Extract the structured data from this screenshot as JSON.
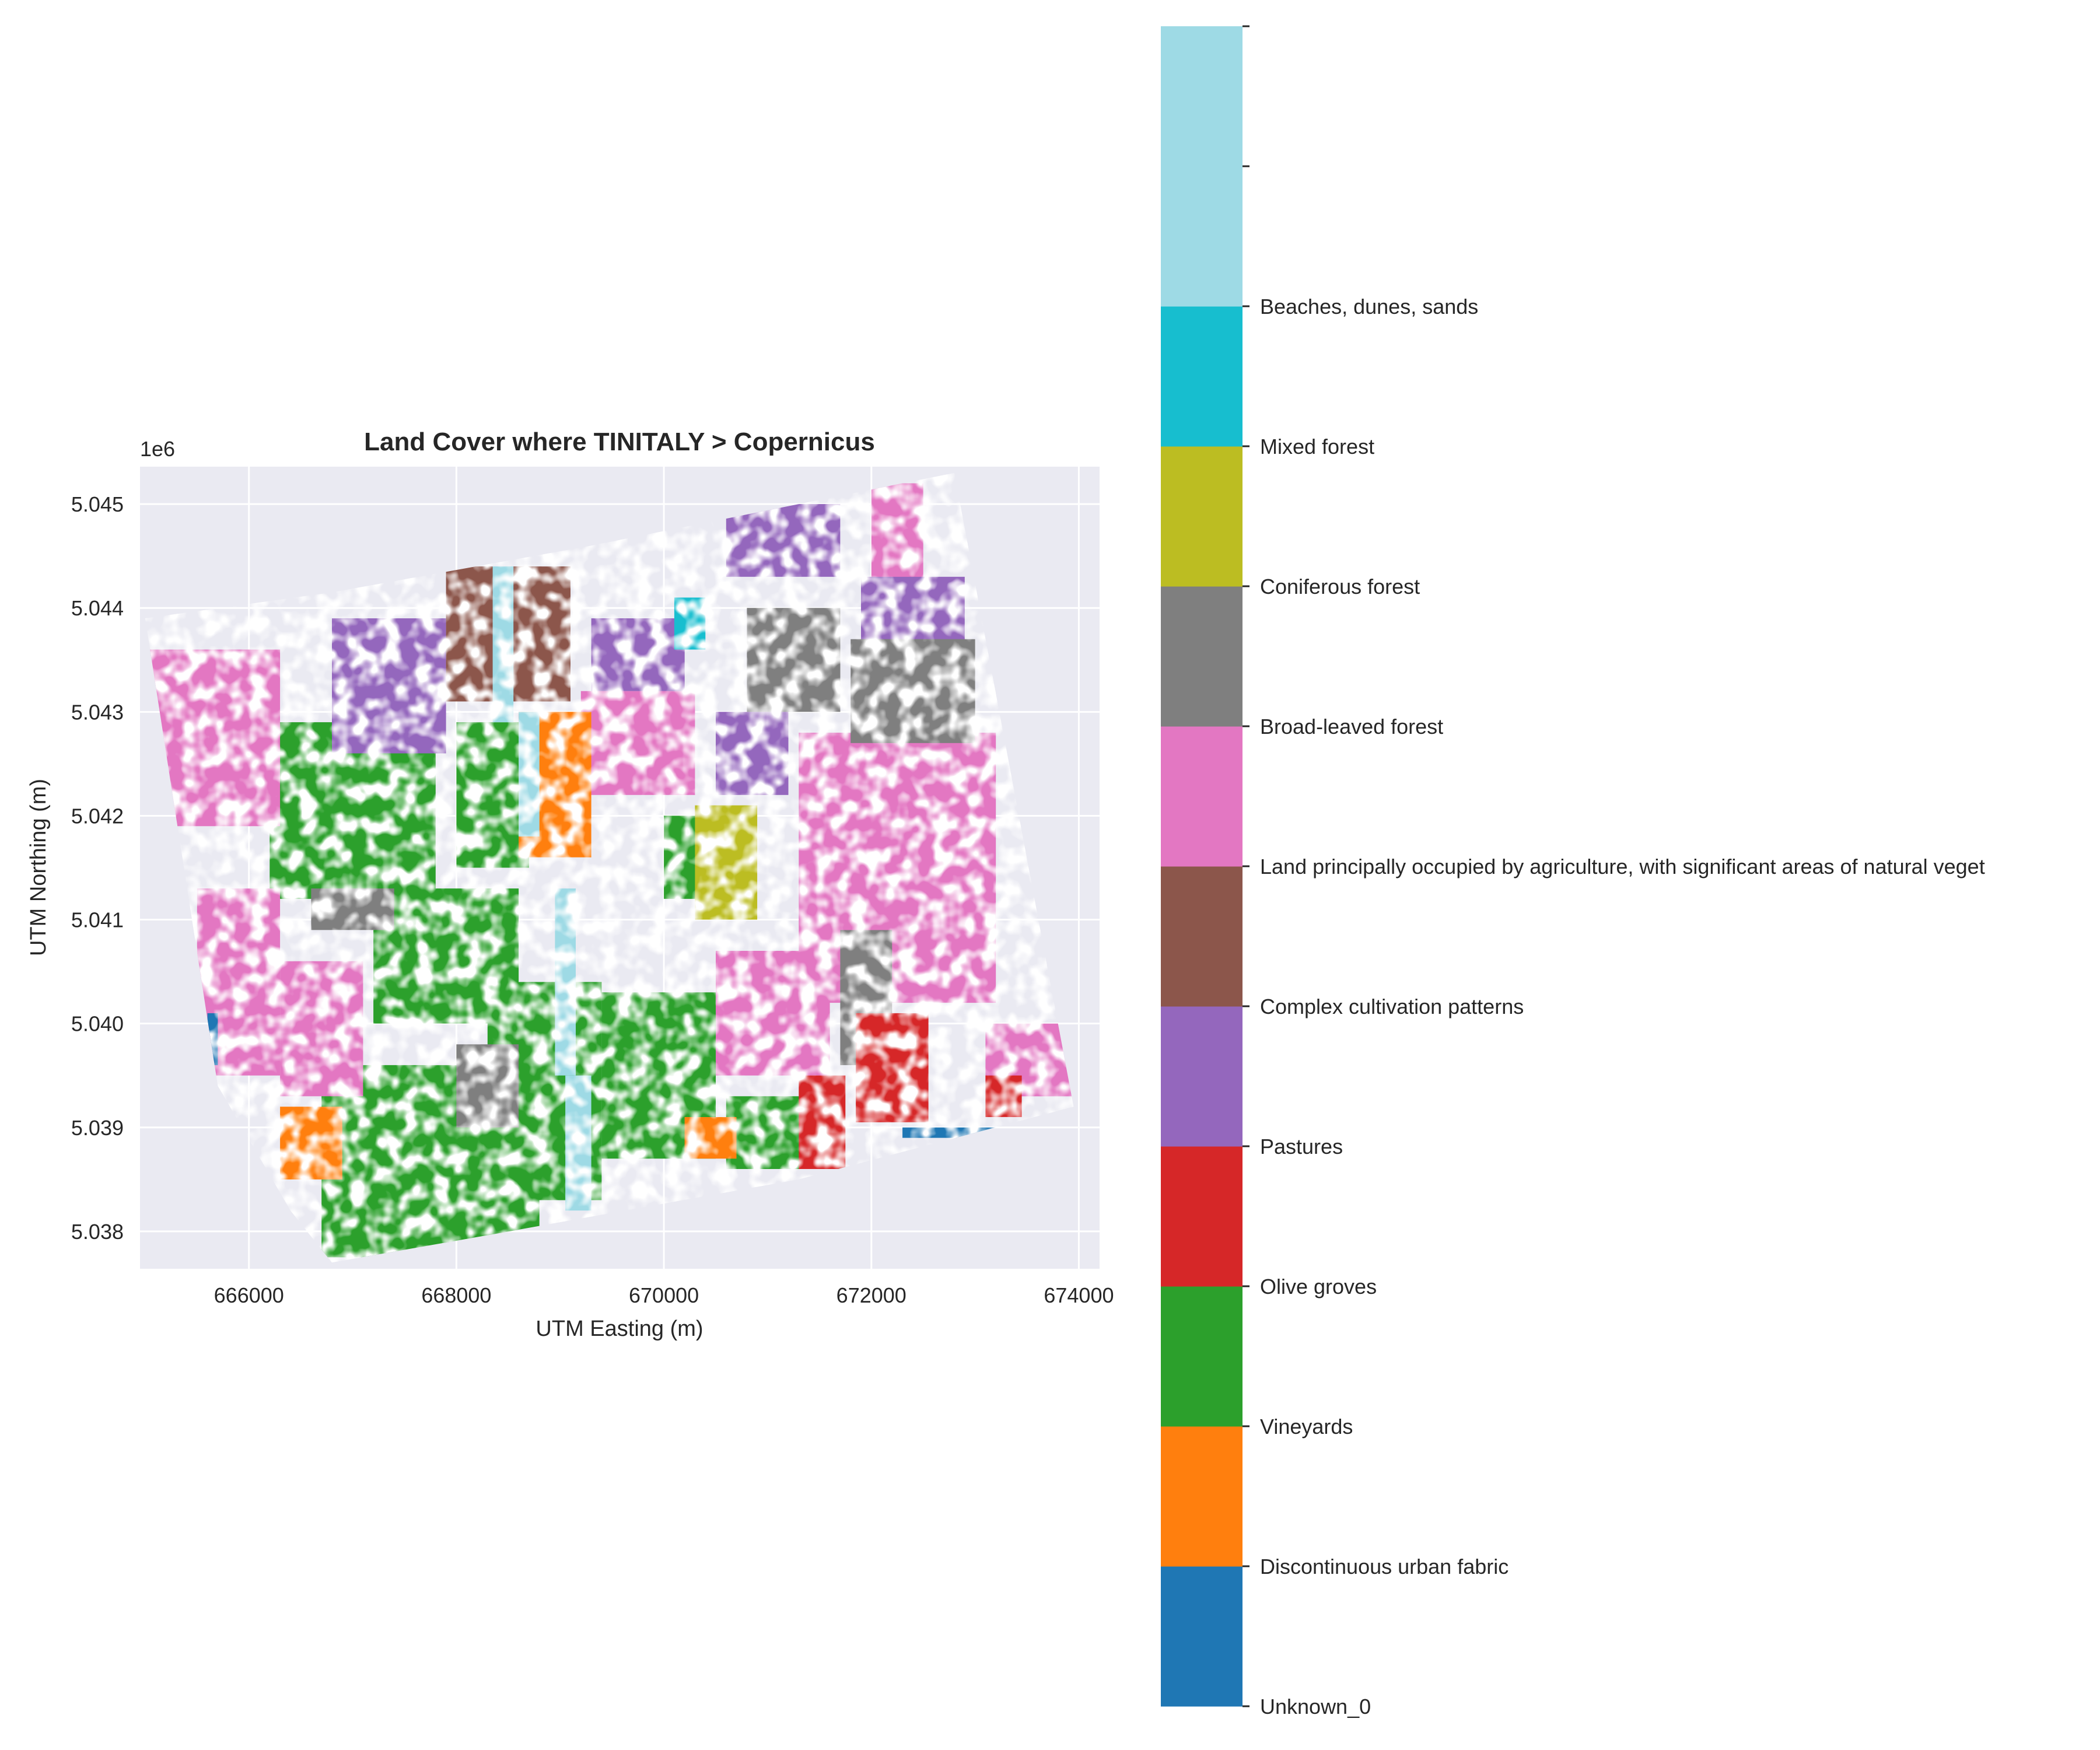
{
  "chart_data": {
    "type": "heatmap",
    "title": "Land Cover where TINITALY > Copernicus",
    "xlabel": "UTM Easting (m)",
    "ylabel": "UTM Northing (m)",
    "y_offset_label": "1e6",
    "xlim": [
      664950,
      674200
    ],
    "ylim": [
      5037640,
      5045360
    ],
    "x_ticks": [
      {
        "value": 666000,
        "label": "666000"
      },
      {
        "value": 668000,
        "label": "668000"
      },
      {
        "value": 670000,
        "label": "670000"
      },
      {
        "value": 672000,
        "label": "672000"
      },
      {
        "value": 674000,
        "label": "674000"
      }
    ],
    "y_ticks": [
      {
        "value": 5038000,
        "label": "5.038"
      },
      {
        "value": 5039000,
        "label": "5.039"
      },
      {
        "value": 5040000,
        "label": "5.040"
      },
      {
        "value": 5041000,
        "label": "5.041"
      },
      {
        "value": 5042000,
        "label": "5.042"
      },
      {
        "value": 5043000,
        "label": "5.043"
      },
      {
        "value": 5044000,
        "label": "5.044"
      },
      {
        "value": 5045000,
        "label": "5.045"
      }
    ],
    "grid": true,
    "background_color": "#eaeaf2",
    "footprint": [
      [
        665000,
        5043900
      ],
      [
        666800,
        5044150
      ],
      [
        669300,
        5044600
      ],
      [
        672800,
        5045300
      ],
      [
        673950,
        5039200
      ],
      [
        671300,
        5038500
      ],
      [
        668400,
        5037980
      ],
      [
        666800,
        5037700
      ],
      [
        666400,
        5038200
      ],
      [
        665700,
        5039400
      ]
    ],
    "classes": [
      {
        "label": "Unknown_0",
        "color": "#1f77b4"
      },
      {
        "label": "Discontinuous urban fabric",
        "color": "#ff7f0e"
      },
      {
        "label": "Vineyards",
        "color": "#2ca02c"
      },
      {
        "label": "Olive groves",
        "color": "#d62728"
      },
      {
        "label": "Pastures",
        "color": "#9467bd"
      },
      {
        "label": "Complex cultivation patterns",
        "color": "#8c564b"
      },
      {
        "label": "Land principally occupied by agriculture, with significant areas of natural veget",
        "color": "#e377c2"
      },
      {
        "label": "Broad-leaved forest",
        "color": "#7f7f7f"
      },
      {
        "label": "Coniferous forest",
        "color": "#bcbd22"
      },
      {
        "label": "Mixed forest",
        "color": "#17becf"
      },
      {
        "label": "Beaches, dunes, sands",
        "color": "#9edae5"
      }
    ],
    "regions": [
      {
        "class": "Vineyards",
        "x": [
          666700,
          668800
        ],
        "y": [
          5037750,
          5039600
        ]
      },
      {
        "class": "Vineyards",
        "x": [
          668300,
          669400
        ],
        "y": [
          5038300,
          5040400
        ]
      },
      {
        "class": "Vineyards",
        "x": [
          669400,
          670500
        ],
        "y": [
          5038700,
          5040300
        ]
      },
      {
        "class": "Vineyards",
        "x": [
          666200,
          667800
        ],
        "y": [
          5041200,
          5042900
        ]
      },
      {
        "class": "Vineyards",
        "x": [
          667200,
          668600
        ],
        "y": [
          5040000,
          5041300
        ]
      },
      {
        "class": "Vineyards",
        "x": [
          668000,
          668700
        ],
        "y": [
          5041500,
          5042900
        ]
      },
      {
        "class": "Vineyards",
        "x": [
          670000,
          670500
        ],
        "y": [
          5041200,
          5042000
        ]
      },
      {
        "class": "Vineyards",
        "x": [
          670600,
          671700
        ],
        "y": [
          5038600,
          5039300
        ]
      },
      {
        "class": "Land principally occupied by agriculture, with significant areas of natural veget",
        "x": [
          665000,
          666300
        ],
        "y": [
          5041900,
          5043600
        ]
      },
      {
        "class": "Land principally occupied by agriculture, with significant areas of natural veget",
        "x": [
          665500,
          666300
        ],
        "y": [
          5039500,
          5041300
        ]
      },
      {
        "class": "Land principally occupied by agriculture, with significant areas of natural veget",
        "x": [
          666300,
          667100
        ],
        "y": [
          5039300,
          5040600
        ]
      },
      {
        "class": "Land principally occupied by agriculture, with significant areas of natural veget",
        "x": [
          669200,
          670300
        ],
        "y": [
          5042200,
          5043200
        ]
      },
      {
        "class": "Land principally occupied by agriculture, with significant areas of natural veget",
        "x": [
          670500,
          671600
        ],
        "y": [
          5039500,
          5040700
        ]
      },
      {
        "class": "Land principally occupied by agriculture, with significant areas of natural veget",
        "x": [
          671300,
          673200
        ],
        "y": [
          5040200,
          5042800
        ]
      },
      {
        "class": "Land principally occupied by agriculture, with significant areas of natural veget",
        "x": [
          673100,
          673950
        ],
        "y": [
          5039300,
          5040000
        ]
      },
      {
        "class": "Land principally occupied by agriculture, with significant areas of natural veget",
        "x": [
          672000,
          672500
        ],
        "y": [
          5044000,
          5045200
        ]
      },
      {
        "class": "Pastures",
        "x": [
          666800,
          667900
        ],
        "y": [
          5042600,
          5043900
        ]
      },
      {
        "class": "Pastures",
        "x": [
          669300,
          670200
        ],
        "y": [
          5043200,
          5043900
        ]
      },
      {
        "class": "Pastures",
        "x": [
          670600,
          671700
        ],
        "y": [
          5044300,
          5045000
        ]
      },
      {
        "class": "Pastures",
        "x": [
          671900,
          672900
        ],
        "y": [
          5043300,
          5044300
        ]
      },
      {
        "class": "Pastures",
        "x": [
          670500,
          671200
        ],
        "y": [
          5042200,
          5043000
        ]
      },
      {
        "class": "Complex cultivation patterns",
        "x": [
          667900,
          669100
        ],
        "y": [
          5043100,
          5044400
        ]
      },
      {
        "class": "Broad-leaved forest",
        "x": [
          670800,
          671700
        ],
        "y": [
          5043000,
          5044000
        ]
      },
      {
        "class": "Broad-leaved forest",
        "x": [
          671800,
          673000
        ],
        "y": [
          5042700,
          5043700
        ]
      },
      {
        "class": "Broad-leaved forest",
        "x": [
          671700,
          672200
        ],
        "y": [
          5039600,
          5040900
        ]
      },
      {
        "class": "Broad-leaved forest",
        "x": [
          666600,
          667400
        ],
        "y": [
          5040900,
          5041300
        ]
      },
      {
        "class": "Broad-leaved forest",
        "x": [
          668000,
          668600
        ],
        "y": [
          5039000,
          5039800
        ]
      },
      {
        "class": "Olive groves",
        "x": [
          671850,
          672550
        ],
        "y": [
          5039050,
          5040100
        ]
      },
      {
        "class": "Olive groves",
        "x": [
          671300,
          671750
        ],
        "y": [
          5038600,
          5039500
        ]
      },
      {
        "class": "Olive groves",
        "x": [
          673100,
          673450
        ],
        "y": [
          5039100,
          5039500
        ]
      },
      {
        "class": "Discontinuous urban fabric",
        "x": [
          668600,
          669300
        ],
        "y": [
          5041600,
          5043000
        ]
      },
      {
        "class": "Discontinuous urban fabric",
        "x": [
          666300,
          666900
        ],
        "y": [
          5038500,
          5039200
        ]
      },
      {
        "class": "Discontinuous urban fabric",
        "x": [
          670200,
          670700
        ],
        "y": [
          5038700,
          5039100
        ]
      },
      {
        "class": "Coniferous forest",
        "x": [
          670300,
          670900
        ],
        "y": [
          5041000,
          5042100
        ]
      },
      {
        "class": "Mixed forest",
        "x": [
          670100,
          670400
        ],
        "y": [
          5043600,
          5044100
        ]
      },
      {
        "class": "Beaches, dunes, sands",
        "x": [
          668350,
          668550
        ],
        "y": [
          5042900,
          5044400
        ]
      },
      {
        "class": "Beaches, dunes, sands",
        "x": [
          668600,
          668800
        ],
        "y": [
          5041800,
          5043000
        ]
      },
      {
        "class": "Beaches, dunes, sands",
        "x": [
          668950,
          669150
        ],
        "y": [
          5039500,
          5041300
        ]
      },
      {
        "class": "Beaches, dunes, sands",
        "x": [
          669050,
          669300
        ],
        "y": [
          5038200,
          5039500
        ]
      },
      {
        "class": "Unknown_0",
        "x": [
          665600,
          665700
        ],
        "y": [
          5039600,
          5040100
        ]
      },
      {
        "class": "Unknown_0",
        "x": [
          672300,
          673200
        ],
        "y": [
          5038900,
          5039000
        ]
      }
    ]
  }
}
